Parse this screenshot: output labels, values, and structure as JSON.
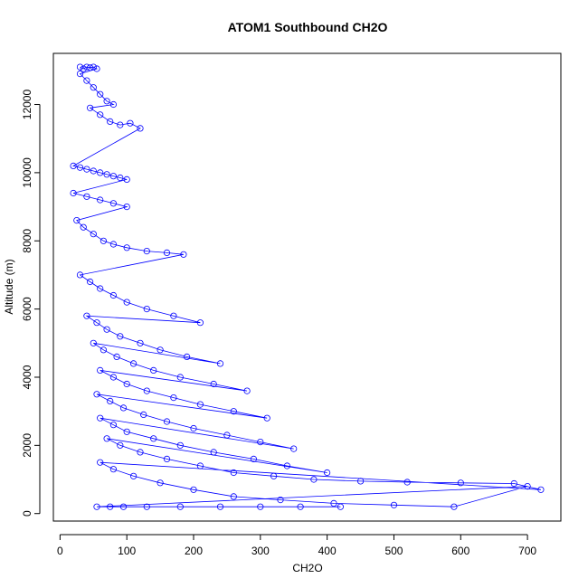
{
  "chart_data": {
    "type": "scatter",
    "title": "ATOM1 Southbound CH2O",
    "xlabel": "CH2O",
    "ylabel": "Altitude (m)",
    "xlim": [
      -10,
      750
    ],
    "ylim": [
      -220,
      13500
    ],
    "xticks": [
      0,
      100,
      200,
      300,
      400,
      500,
      600,
      700
    ],
    "yticks": [
      0,
      2000,
      4000,
      6000,
      8000,
      10000,
      12000
    ],
    "point_color": "#0000ff",
    "marker": "open-circle",
    "lines_connected": true,
    "grid": false,
    "series": [
      {
        "x": [
          30,
          35,
          40,
          45,
          50,
          55,
          30,
          40,
          50,
          60,
          70,
          80,
          45,
          60,
          75,
          90,
          105,
          120,
          20,
          30,
          40,
          50,
          60,
          70,
          80,
          90,
          100,
          20,
          40,
          60,
          80,
          100,
          25,
          35,
          50,
          65,
          80,
          100,
          130,
          160,
          185,
          30,
          45,
          60,
          80,
          100,
          130,
          170,
          210,
          40,
          55,
          70,
          90,
          120,
          150,
          190,
          240,
          50,
          65,
          85,
          110,
          140,
          180,
          230,
          280,
          60,
          80,
          100,
          130,
          170,
          210,
          260,
          310,
          55,
          75,
          95,
          125,
          160,
          200,
          250,
          300,
          350,
          60,
          80,
          100,
          140,
          180,
          230,
          290,
          340,
          400,
          70,
          90,
          120,
          160,
          210,
          260,
          320,
          380,
          450,
          520,
          600,
          680,
          720,
          60,
          80,
          110,
          150,
          200,
          260,
          330,
          410,
          500,
          590,
          700,
          55,
          75,
          95,
          130,
          180,
          240,
          300,
          360,
          420
        ],
        "y": [
          13100,
          13050,
          13100,
          13080,
          13100,
          13050,
          12900,
          12700,
          12500,
          12300,
          12100,
          12000,
          11900,
          11700,
          11500,
          11400,
          11450,
          11300,
          10200,
          10150,
          10100,
          10050,
          10000,
          9950,
          9900,
          9850,
          9800,
          9400,
          9300,
          9200,
          9100,
          9000,
          8600,
          8400,
          8200,
          8000,
          7900,
          7800,
          7700,
          7650,
          7600,
          7000,
          6800,
          6600,
          6400,
          6200,
          6000,
          5800,
          5600,
          5800,
          5600,
          5400,
          5200,
          5000,
          4800,
          4600,
          4400,
          5000,
          4800,
          4600,
          4400,
          4200,
          4000,
          3800,
          3600,
          4200,
          4000,
          3800,
          3600,
          3400,
          3200,
          3000,
          2800,
          3500,
          3300,
          3100,
          2900,
          2700,
          2500,
          2300,
          2100,
          1900,
          2800,
          2600,
          2400,
          2200,
          2000,
          1800,
          1600,
          1400,
          1200,
          2200,
          2000,
          1800,
          1600,
          1400,
          1200,
          1100,
          1000,
          950,
          920,
          900,
          880,
          700,
          1500,
          1300,
          1100,
          900,
          700,
          500,
          400,
          300,
          250,
          200,
          800,
          200,
          200,
          200,
          200,
          200,
          200,
          200,
          200,
          200
        ]
      }
    ]
  }
}
